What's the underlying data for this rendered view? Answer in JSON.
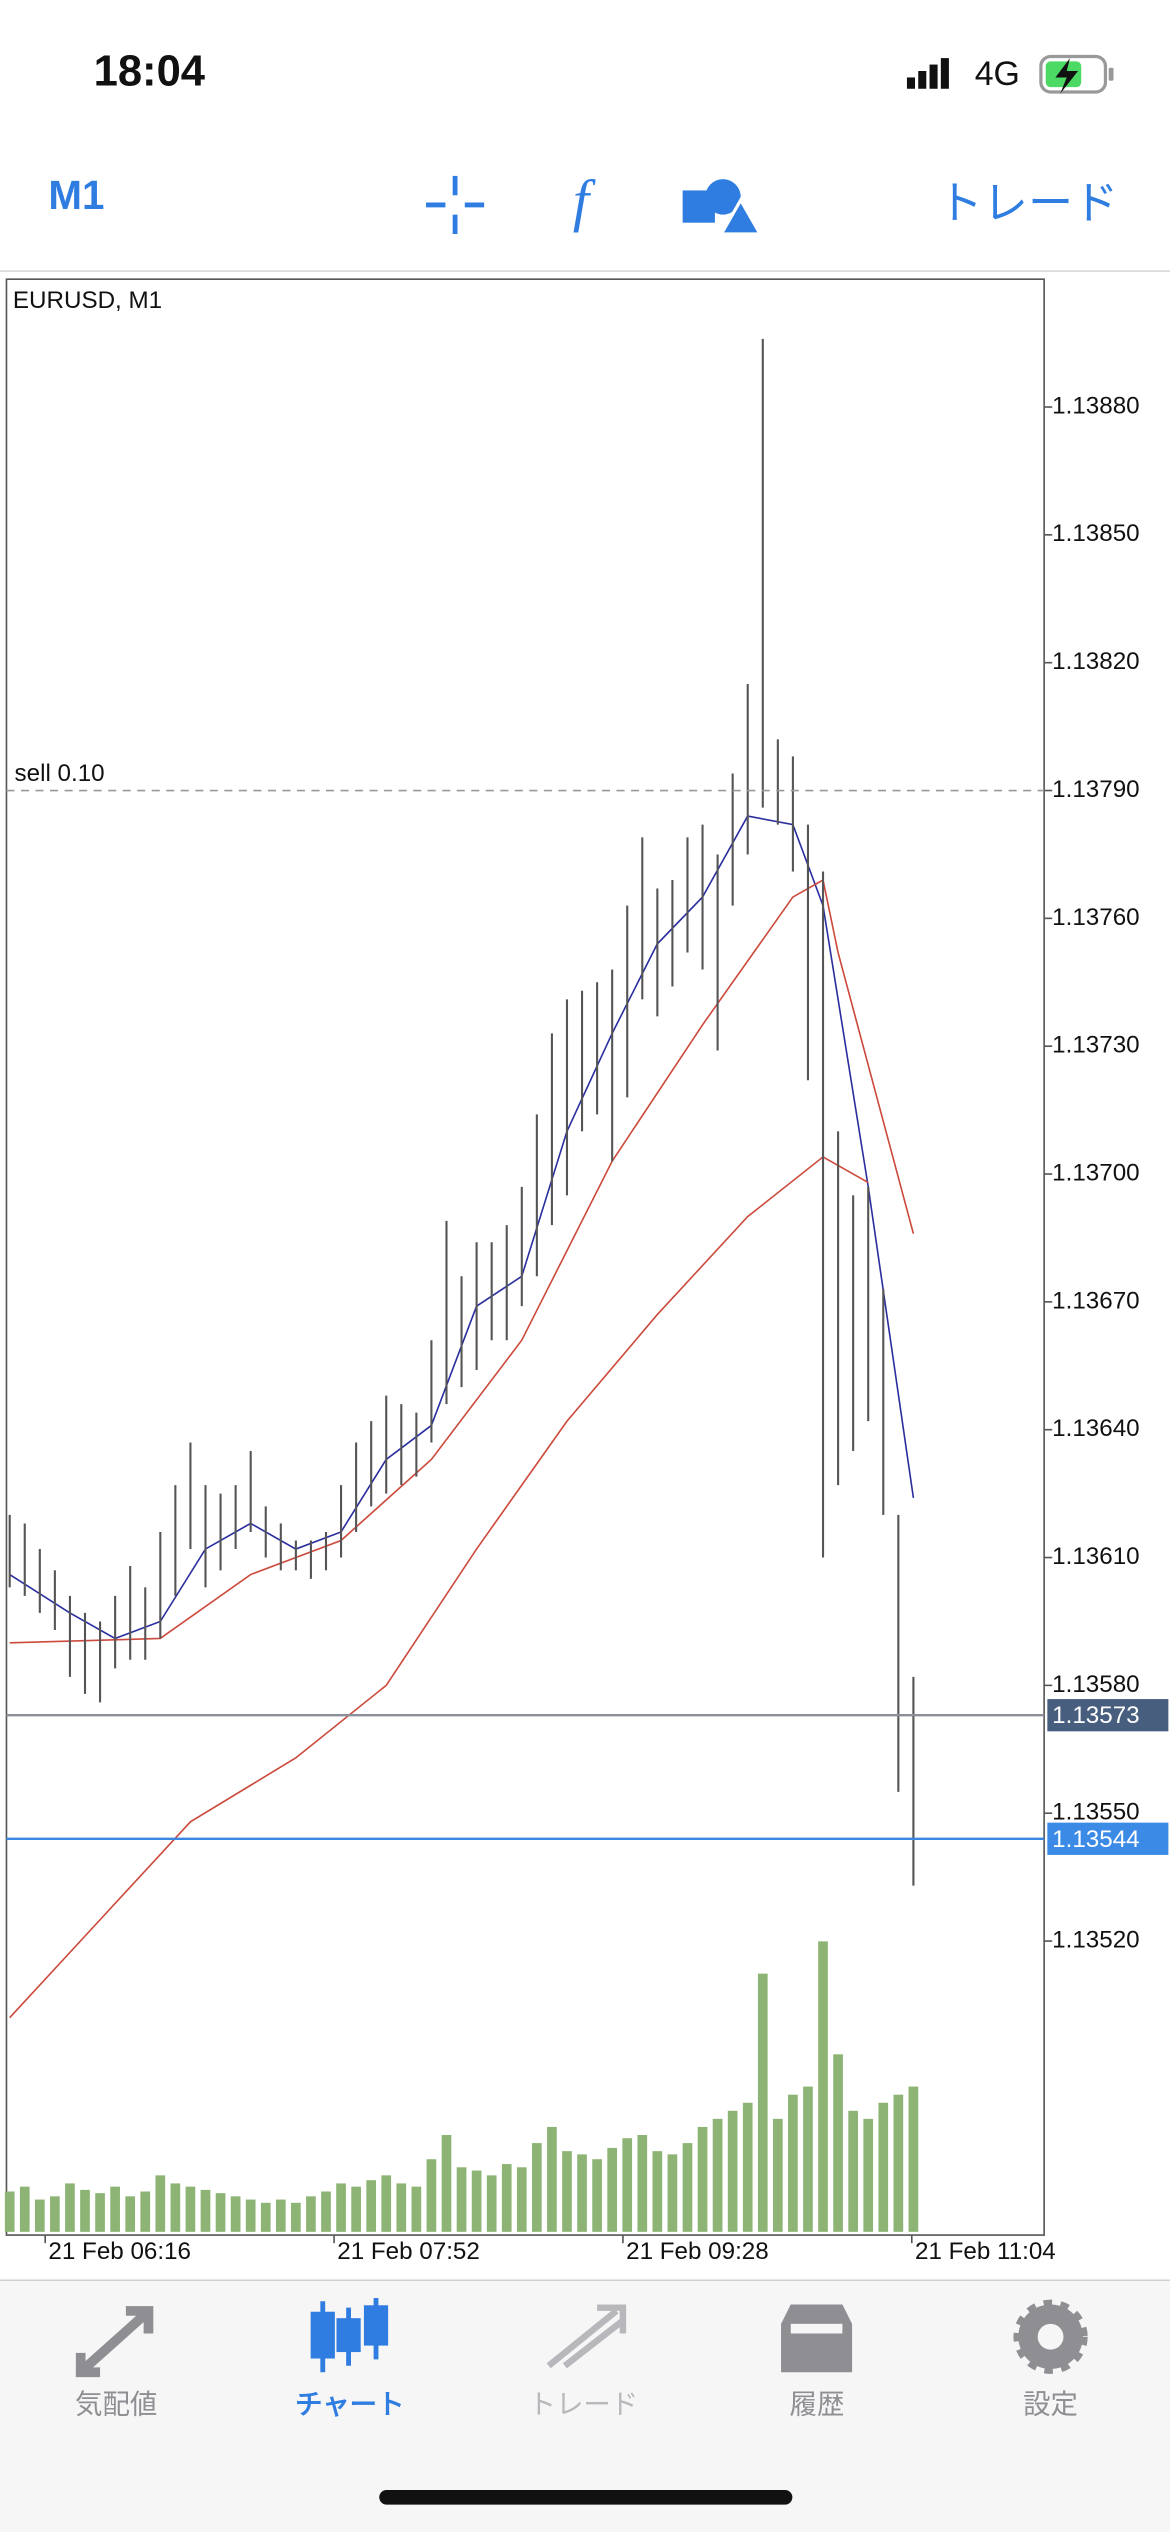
{
  "status_bar": {
    "time": "18:04",
    "network": "4G"
  },
  "toolbar": {
    "timeframe": "M1",
    "trade_button": "トレード"
  },
  "chart_data": {
    "type": "hlbar",
    "title": "EURUSD, M1",
    "bar_color": "#555555",
    "volume_color": "#8db474",
    "high": [
      1.1362,
      1.13618,
      1.13612,
      1.13607,
      1.13601,
      1.13597,
      1.13595,
      1.13601,
      1.13608,
      1.13603,
      1.13616,
      1.13627,
      1.13637,
      1.13627,
      1.13625,
      1.13627,
      1.13635,
      1.13622,
      1.13618,
      1.13614,
      1.13614,
      1.13616,
      1.13627,
      1.13637,
      1.13642,
      1.13648,
      1.13646,
      1.13644,
      1.13661,
      1.13689,
      1.13676,
      1.13684,
      1.13684,
      1.13688,
      1.13697,
      1.13714,
      1.13733,
      1.13741,
      1.13743,
      1.13745,
      1.13748,
      1.13763,
      1.13779,
      1.13767,
      1.13769,
      1.13779,
      1.13782,
      1.13775,
      1.13794,
      1.13815,
      1.13896,
      1.13802,
      1.13798,
      1.13782,
      1.13771,
      1.1371,
      1.13695,
      1.13697,
      1.13673,
      1.1362,
      1.13582
    ],
    "low": [
      1.13603,
      1.13601,
      1.13597,
      1.13593,
      1.13582,
      1.13578,
      1.13576,
      1.13584,
      1.13586,
      1.13586,
      1.13591,
      1.13601,
      1.13612,
      1.13603,
      1.13607,
      1.13612,
      1.13616,
      1.1361,
      1.13607,
      1.13607,
      1.13605,
      1.13607,
      1.1361,
      1.13616,
      1.13622,
      1.13625,
      1.13627,
      1.13629,
      1.13637,
      1.13646,
      1.1365,
      1.13654,
      1.13661,
      1.13661,
      1.13669,
      1.13676,
      1.13688,
      1.13695,
      1.1371,
      1.13714,
      1.13703,
      1.13718,
      1.13741,
      1.13737,
      1.13744,
      1.13752,
      1.13748,
      1.13729,
      1.13763,
      1.13775,
      1.13786,
      1.13782,
      1.13771,
      1.13722,
      1.1361,
      1.13627,
      1.13635,
      1.13642,
      1.1362,
      1.13555,
      1.13533
    ],
    "volume": [
      25,
      28,
      20,
      22,
      30,
      26,
      24,
      28,
      22,
      25,
      35,
      30,
      28,
      26,
      24,
      22,
      20,
      18,
      20,
      18,
      22,
      25,
      30,
      28,
      32,
      35,
      30,
      28,
      45,
      60,
      40,
      38,
      35,
      42,
      40,
      55,
      65,
      50,
      48,
      45,
      52,
      58,
      60,
      50,
      48,
      55,
      65,
      70,
      75,
      80,
      160,
      70,
      85,
      90,
      180,
      110,
      75,
      70,
      80,
      85,
      90
    ],
    "lines": [
      {
        "color": "#2b2f9e",
        "x": [
          0,
          4,
          7,
          10,
          13,
          16,
          19,
          22,
          25,
          28,
          31,
          34,
          37,
          40,
          43,
          46,
          49,
          52,
          54,
          57,
          60
        ],
        "values": [
          1.13606,
          1.13597,
          1.13591,
          1.13595,
          1.13612,
          1.13618,
          1.13612,
          1.13616,
          1.13633,
          1.13641,
          1.13669,
          1.13676,
          1.1371,
          1.13733,
          1.13754,
          1.13765,
          1.13784,
          1.13782,
          1.13763,
          1.13697,
          1.13624
        ]
      },
      {
        "color": "#cc4a3c",
        "x": [
          0,
          10,
          16,
          22,
          28,
          34,
          40,
          46,
          52,
          54,
          55,
          60
        ],
        "values": [
          1.1359,
          1.13591,
          1.13606,
          1.13614,
          1.13633,
          1.13661,
          1.13703,
          1.13735,
          1.13765,
          1.13769,
          1.13752,
          1.13686
        ]
      },
      {
        "color": "#cc4a3c",
        "x": [
          0,
          6,
          12,
          19,
          25,
          31,
          37,
          43,
          49,
          54,
          57
        ],
        "values": [
          1.13502,
          1.13525,
          1.13548,
          1.13563,
          1.1358,
          1.13612,
          1.13642,
          1.13667,
          1.1369,
          1.13704,
          1.13698
        ]
      }
    ],
    "levels": [
      {
        "value": 1.1379,
        "label": "sell 0.10",
        "color": "#999999",
        "style": "dashed"
      },
      {
        "value": 1.13573,
        "color": "#8a8f99",
        "box_color": "#475e7f"
      },
      {
        "value": 1.13544,
        "color": "#3a86e0",
        "box_color": "#3a8ae6"
      }
    ],
    "ylim": [
      1.13451,
      1.1391
    ],
    "yticks": [
      {
        "value": 1.1388,
        "label": "1.13880"
      },
      {
        "value": 1.1385,
        "label": "1.13850"
      },
      {
        "value": 1.1382,
        "label": "1.13820"
      },
      {
        "value": 1.1379,
        "label": "1.13790"
      },
      {
        "value": 1.1376,
        "label": "1.13760"
      },
      {
        "value": 1.1373,
        "label": "1.13730"
      },
      {
        "value": 1.137,
        "label": "1.13700"
      },
      {
        "value": 1.1367,
        "label": "1.13670"
      },
      {
        "value": 1.1364,
        "label": "1.13640"
      },
      {
        "value": 1.1361,
        "label": "1.13610"
      },
      {
        "value": 1.1358,
        "label": "1.13580"
      },
      {
        "value": 1.1355,
        "label": "1.13550"
      },
      {
        "value": 1.1352,
        "label": "1.13520"
      }
    ],
    "xtick_labels": [
      "21 Feb 06:16",
      "21 Feb 07:52",
      "21 Feb 09:28",
      "21 Feb 11:04"
    ]
  },
  "tab_bar": {
    "tabs": [
      "気配値",
      "チャート",
      "トレード",
      "履歴",
      "設定"
    ],
    "active": 1
  }
}
